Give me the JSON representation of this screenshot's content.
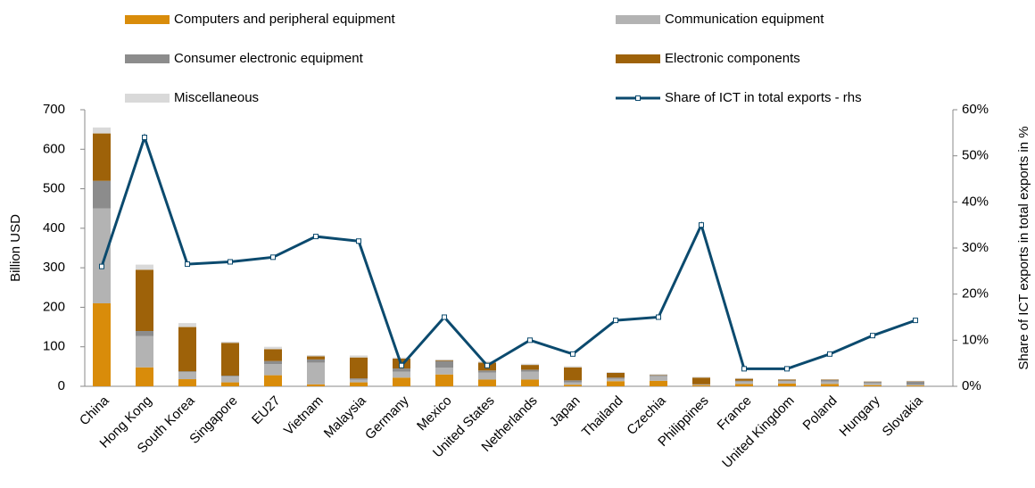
{
  "chart_data": {
    "type": "bar_line",
    "categories": [
      "China",
      "Hong Kong",
      "South Korea",
      "Singapore",
      "EU27",
      "Vietnam",
      "Malaysia",
      "Germany",
      "Mexico",
      "United States",
      "Netherlands",
      "Japan",
      "Thailand",
      "Czechia",
      "Philippines",
      "France",
      "United Kingdom",
      "Poland",
      "Hungary",
      "Slovakia"
    ],
    "ylabel": "Billion USD",
    "y2label": "Share of ICT exports in total exports in %",
    "ylim": [
      0,
      700
    ],
    "yticks": [
      0,
      100,
      200,
      300,
      400,
      500,
      600,
      700
    ],
    "y2lim": [
      0,
      60
    ],
    "y2ticks": [
      {
        "value": 0,
        "label": "0%"
      },
      {
        "value": 10,
        "label": "10%"
      },
      {
        "value": 20,
        "label": "20%"
      },
      {
        "value": 30,
        "label": "30%"
      },
      {
        "value": 40,
        "label": "40%"
      },
      {
        "value": 50,
        "label": "50%"
      },
      {
        "value": 60,
        "label": "60%"
      }
    ],
    "grid": false,
    "series": [
      {
        "name": "Computers and peripheral equipment",
        "type": "bar",
        "color": "#d98c0a",
        "values": [
          210,
          48,
          18,
          10,
          28,
          5,
          10,
          22,
          30,
          17,
          17,
          4,
          13,
          14,
          3,
          6,
          7,
          6,
          3,
          2
        ]
      },
      {
        "name": "Communication equipment",
        "type": "bar",
        "color": "#b3b3b3",
        "values": [
          240,
          79,
          18,
          15,
          28,
          55,
          7,
          15,
          17,
          18,
          20,
          6,
          6,
          12,
          1,
          6,
          6,
          6,
          5,
          2
        ]
      },
      {
        "name": "Consumer electronic equipment",
        "type": "bar",
        "color": "#8c8c8c",
        "values": [
          70,
          13,
          2,
          2,
          8,
          8,
          3,
          8,
          17,
          5,
          5,
          5,
          3,
          2,
          1,
          2,
          2,
          4,
          3,
          8
        ]
      },
      {
        "name": "Electronic components",
        "type": "bar",
        "color": "#9e6209",
        "values": [
          120,
          155,
          112,
          83,
          30,
          8,
          53,
          25,
          2,
          20,
          12,
          33,
          12,
          1,
          17,
          5,
          2,
          1,
          1,
          1
        ]
      },
      {
        "name": "Miscellaneous",
        "type": "bar",
        "color": "#d9d9d9",
        "values": [
          15,
          13,
          10,
          3,
          6,
          3,
          5,
          3,
          2,
          3,
          3,
          3,
          2,
          2,
          2,
          2,
          1,
          1,
          1,
          1
        ]
      },
      {
        "name": "Share of ICT in total exports - rhs",
        "type": "line",
        "axis": "y2",
        "color": "#0b4a6e",
        "values": [
          26,
          54,
          26.5,
          27,
          28,
          32.5,
          31.5,
          4.5,
          15,
          4.5,
          10,
          7,
          14.3,
          15,
          35,
          3.8,
          3.8,
          7,
          11,
          14.3
        ]
      }
    ]
  }
}
